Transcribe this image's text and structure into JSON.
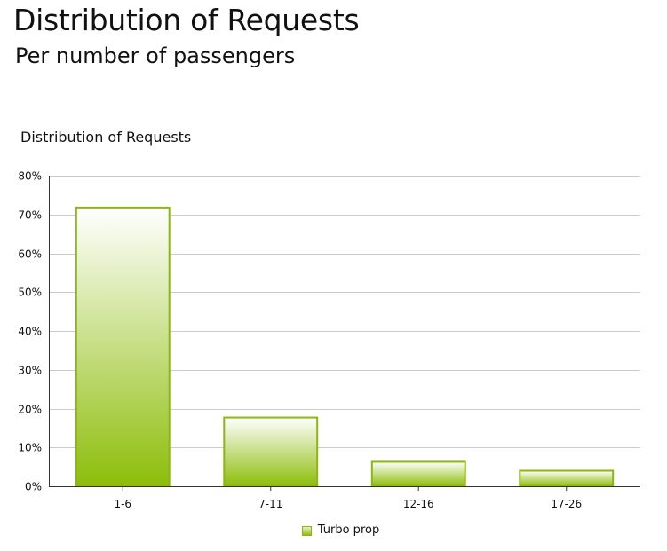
{
  "header": {
    "title": "Distribution of Requests",
    "subtitle": "Per number of passengers"
  },
  "colors": {
    "bar_border": "#8cb70f",
    "bar_top": "#ffffff",
    "bar_bottom": "#8dbd0a",
    "grid": "#cccccc",
    "axis": "#333333"
  },
  "chart_data": {
    "type": "bar",
    "title": "Distribution of Requests",
    "categories": [
      "1-6",
      "7-11",
      "12-16",
      "17-26"
    ],
    "series": [
      {
        "name": "Turbo prop",
        "values": [
          71.8,
          17.7,
          6.3,
          4.0
        ]
      }
    ],
    "ylim": [
      0,
      80
    ],
    "yticks": [
      "0%",
      "10%",
      "20%",
      "30%",
      "40%",
      "50%",
      "60%",
      "70%",
      "80%"
    ],
    "ytick_values": [
      0,
      10,
      20,
      30,
      40,
      50,
      60,
      70,
      80
    ],
    "grid": true,
    "legend_position": "bottom-center"
  }
}
